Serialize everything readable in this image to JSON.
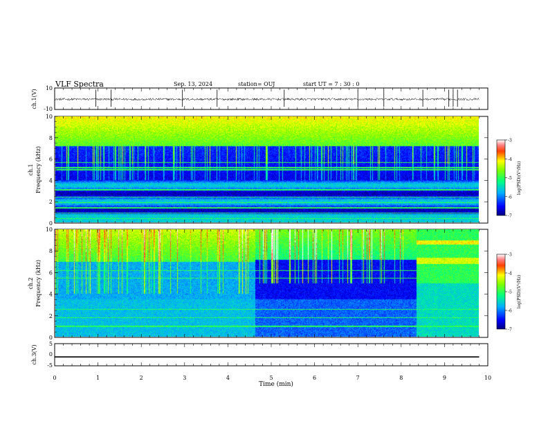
{
  "header": {
    "title": "VLF Spectra",
    "date": "Sep. 13, 2024",
    "station": "station= OUJ",
    "start": "start  UT =   7 : 30 : 0"
  },
  "colorbar": {
    "label": "log(PSD)(V²/Hz)",
    "ticks": [
      "-3",
      "-4",
      "-5",
      "-6",
      "-7"
    ]
  },
  "chart_data": [
    {
      "type": "line",
      "name": "ch1 waveform",
      "ylabel": "ch.1(V)",
      "yticks": [
        "10",
        "-10"
      ],
      "ylim": [
        -10,
        10
      ],
      "xlim": [
        0,
        10
      ],
      "baseline": -0.5,
      "spikes_x": [
        0.95,
        1.3,
        2.95,
        3.75,
        5.3,
        7.0,
        7.6,
        8.5,
        9.1,
        9.2,
        9.3
      ]
    },
    {
      "type": "heatmap",
      "name": "ch1 spectrogram",
      "ylabel": "ch.1\nFrequency (kHz)",
      "yticks": [
        "10",
        "8",
        "6",
        "4",
        "2",
        "0"
      ],
      "ylim": [
        0,
        10
      ],
      "xlim": [
        0,
        9.85
      ]
    },
    {
      "type": "heatmap",
      "name": "ch2 spectrogram",
      "ylabel": "ch.2\nFrequency (kHz)",
      "yticks": [
        "10",
        "8",
        "6",
        "4",
        "2",
        "0"
      ],
      "ylim": [
        0,
        10
      ],
      "xlim": [
        0,
        9.85
      ],
      "segments_min": [
        4.65,
        8.4
      ]
    },
    {
      "type": "line",
      "name": "ch3 waveform",
      "ylabel": "ch.3(V)",
      "yticks": [
        "5",
        "0",
        "-5"
      ],
      "ylim": [
        -5,
        5
      ],
      "xlim": [
        0,
        10
      ],
      "value": -1
    }
  ],
  "xaxis": {
    "label": "Time (min)",
    "ticks": [
      "0",
      "1",
      "2",
      "3",
      "4",
      "5",
      "6",
      "7",
      "8",
      "9",
      "10"
    ],
    "range": [
      0,
      10
    ]
  },
  "colors": {
    "axis": "#000000",
    "background": "#ffffff"
  }
}
